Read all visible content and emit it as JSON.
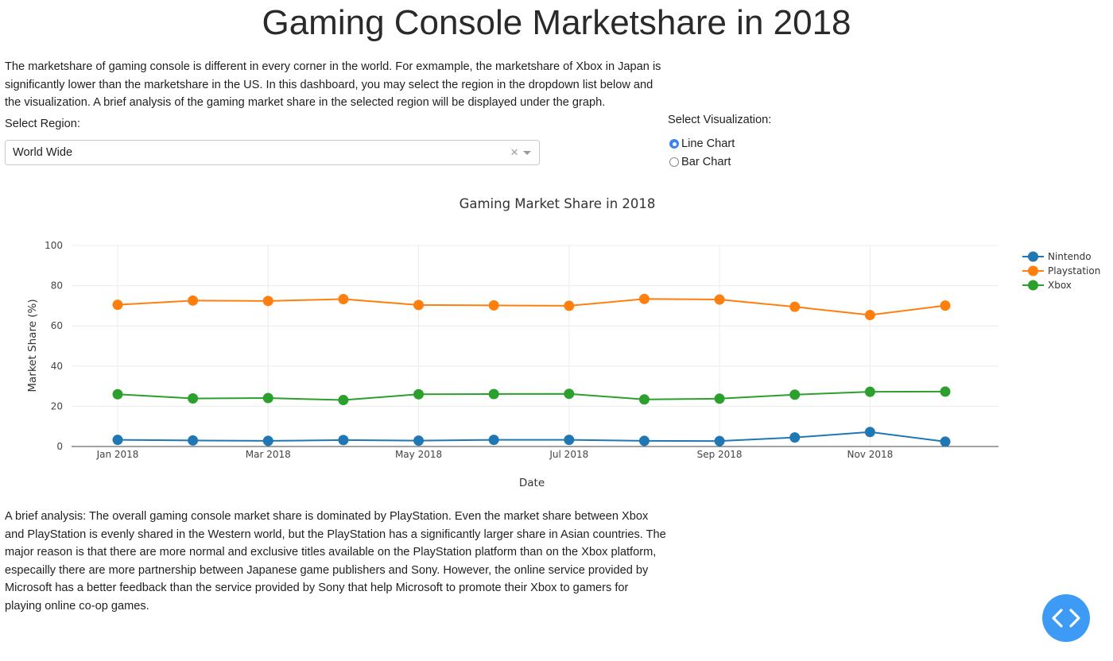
{
  "page": {
    "title": "Gaming Console Marketshare in 2018",
    "intro": "The marketshare of gaming console is different in every corner in the world. For exmample, the marketshare of Xbox in Japan is significantly lower than the marketshare in the US. In this dashboard, you may select the region in the dropdown list below and the visualization. A brief analysis of the gaming market share in the selected region will be displayed under the graph.",
    "analysis": "A brief analysis: The overall gaming console market share is dominated by PlayStation. Even the market share between Xbox and PlayStation is evenly shared in the Western world, but the PlayStation has a significantly larger share in Asian countries. The major reason is that there are more normal and exclusive titles available on the PlayStation platform than on the Xbox platform, especailly there are more partnership between Japanese game publishers and Sony. However, the online service provided by Microsoft has a better feedback than the service provided by Sony that help Microsoft to promote their Xbox to gamers for playing online co-op games."
  },
  "region": {
    "label": "Select Region:",
    "selected": "World Wide",
    "clear": "×"
  },
  "visualization": {
    "label": "Select Visualization:",
    "options": [
      "Line Chart",
      "Bar Chart"
    ],
    "selected": "Line Chart"
  },
  "chart_data": {
    "type": "line",
    "title": "Gaming Market Share in 2018",
    "xlabel": "Date",
    "ylabel": "Market Share (%)",
    "x": [
      "2018-01",
      "2018-02",
      "2018-03",
      "2018-04",
      "2018-05",
      "2018-06",
      "2018-07",
      "2018-08",
      "2018-09",
      "2018-10",
      "2018-11",
      "2018-12"
    ],
    "xticks": [
      "Jan 2018",
      "Mar 2018",
      "May 2018",
      "Jul 2018",
      "Sep 2018",
      "Nov 2018"
    ],
    "ylim": [
      0,
      100
    ],
    "yticks": [
      0,
      20,
      40,
      60,
      80,
      100
    ],
    "grid": true,
    "legend_position": "top-right",
    "series": [
      {
        "name": "Nintendo",
        "color": "#1f77b4",
        "values": [
          3.3,
          3.0,
          2.8,
          3.2,
          2.9,
          3.3,
          3.3,
          2.8,
          2.7,
          4.5,
          7.2,
          2.4
        ]
      },
      {
        "name": "Playstation",
        "color": "#ff7f0e",
        "values": [
          70.5,
          72.6,
          72.4,
          73.3,
          70.4,
          70.2,
          70.0,
          73.4,
          73.1,
          69.5,
          65.4,
          70.1
        ]
      },
      {
        "name": "Xbox",
        "color": "#2ca02c",
        "values": [
          26.0,
          23.9,
          24.1,
          23.1,
          26.0,
          26.1,
          26.2,
          23.4,
          23.8,
          25.8,
          27.2,
          27.3
        ]
      }
    ]
  }
}
